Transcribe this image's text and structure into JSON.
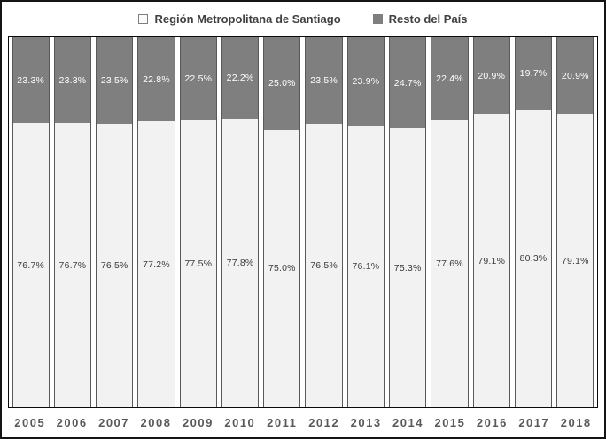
{
  "chart": {
    "legend": {
      "items": [
        {
          "label": "Región Metropolitana de Santiago",
          "swatch": "light-outlined-square",
          "color": "#f2f2f2"
        },
        {
          "label": "Resto del País",
          "swatch": "dark-filled-square",
          "color": "#7f7f7f"
        }
      ]
    }
  },
  "chart_data": {
    "type": "bar",
    "subtype": "stacked-100-percent",
    "title": "",
    "xlabel": "",
    "ylabel": "",
    "ylim": [
      0,
      100
    ],
    "unit": "%",
    "grid": false,
    "data_labels": "centered, one decimal, percent",
    "legend_position": "top",
    "categories": [
      "2005",
      "2006",
      "2007",
      "2008",
      "2009",
      "2010",
      "2011",
      "2012",
      "2013",
      "2014",
      "2015",
      "2016",
      "2017",
      "2018"
    ],
    "series": [
      {
        "name": "Región Metropolitana de Santiago",
        "color": "#f2f2f2",
        "label_color": "#3b3b3b",
        "position": "bottom",
        "values": [
          76.7,
          76.7,
          76.5,
          77.2,
          77.5,
          77.8,
          75.0,
          76.5,
          76.1,
          75.3,
          77.6,
          79.1,
          80.3,
          79.1
        ]
      },
      {
        "name": "Resto del País",
        "color": "#7f7f7f",
        "label_color": "#ffffff",
        "position": "top",
        "values": [
          23.3,
          23.3,
          23.5,
          22.8,
          22.5,
          22.2,
          25.0,
          23.5,
          23.9,
          24.7,
          22.4,
          20.9,
          19.7,
          20.9
        ]
      }
    ]
  },
  "style": {
    "bar_border_color": "#595959",
    "axis_text_color": "#595959",
    "legend_text_color": "#404040",
    "plot_border_color": "#0a0a0a",
    "outer_border_color": "#141414",
    "background": "#ffffff"
  }
}
